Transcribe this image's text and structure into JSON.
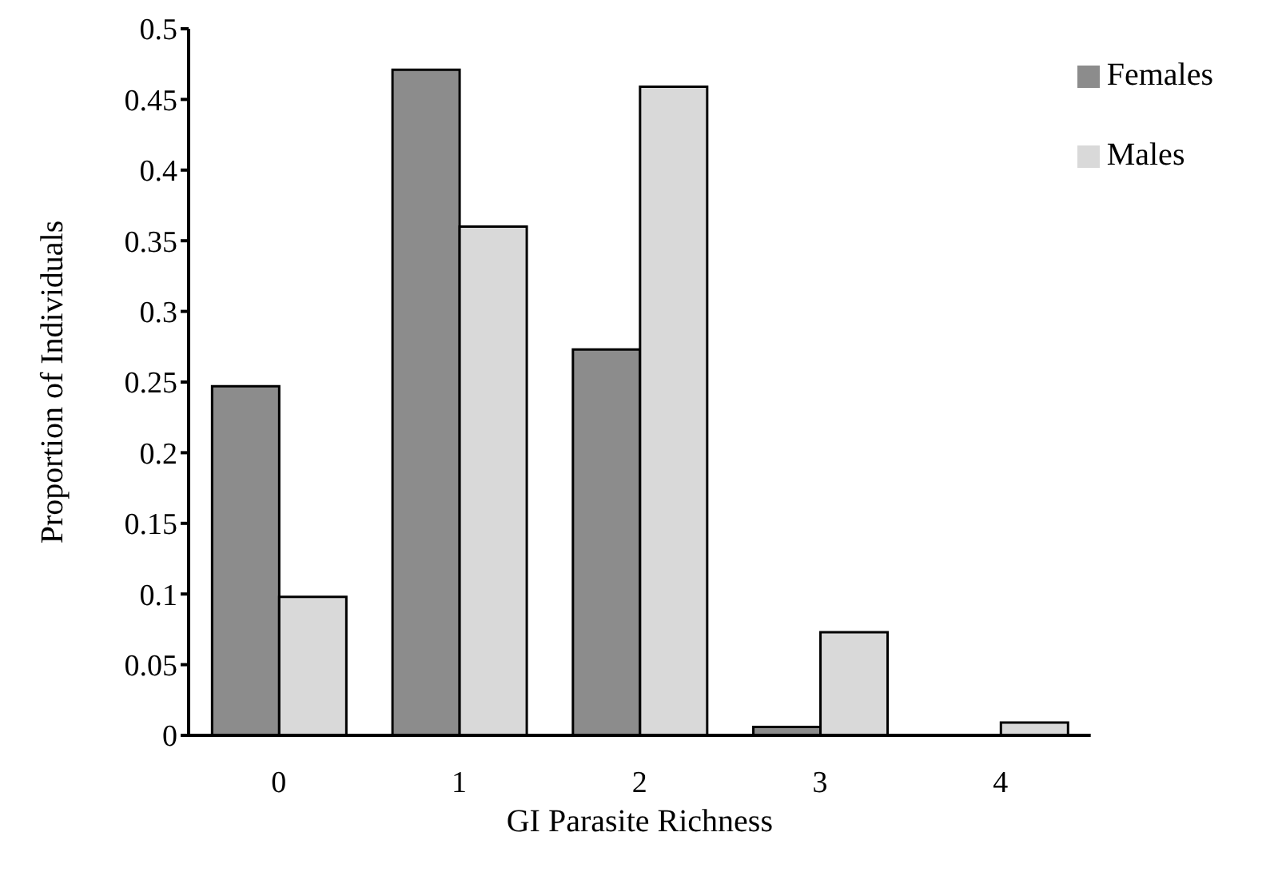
{
  "chart_data": {
    "type": "bar",
    "xlabel": "GI Parasite Richness",
    "ylabel": "Proportion of Individuals",
    "categories": [
      "0",
      "1",
      "2",
      "3",
      "4"
    ],
    "series": [
      {
        "name": "Females",
        "color": "#8c8c8c",
        "values": [
          0.247,
          0.471,
          0.273,
          0.006,
          0
        ]
      },
      {
        "name": "Males",
        "color": "#d9d9d9",
        "values": [
          0.098,
          0.36,
          0.459,
          0.073,
          0.009
        ]
      }
    ],
    "ylim": [
      0,
      0.5
    ],
    "yticks": [
      0,
      0.05,
      0.1,
      0.15,
      0.2,
      0.25,
      0.3,
      0.35,
      0.4,
      0.45,
      0.5
    ],
    "grid": false,
    "legend": "top right"
  }
}
